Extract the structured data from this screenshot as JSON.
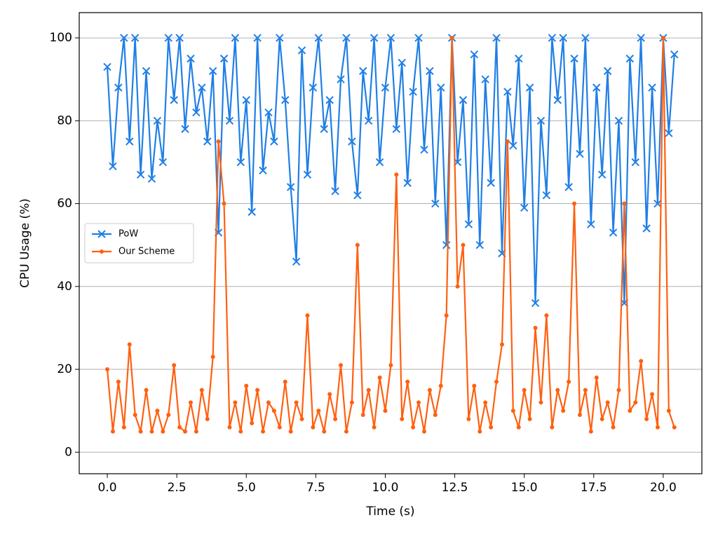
{
  "chart_data": {
    "type": "line",
    "x_label": "Time (s)",
    "y_label": "CPU Usage (%)",
    "x": [
      0,
      0.2,
      0.4,
      0.6,
      0.8,
      1,
      1.2,
      1.4,
      1.6,
      1.8,
      2,
      2.2,
      2.4,
      2.6,
      2.8,
      3,
      3.2,
      3.4,
      3.6,
      3.8,
      4,
      4.2,
      4.4,
      4.6,
      4.8,
      5,
      5.2,
      5.4,
      5.6,
      5.8,
      6,
      6.2,
      6.4,
      6.6,
      6.8,
      7,
      7.2,
      7.4,
      7.6,
      7.8,
      8,
      8.2,
      8.4,
      8.6,
      8.8,
      9,
      9.2,
      9.4,
      9.6,
      9.8,
      10,
      10.2,
      10.4,
      10.6,
      10.8,
      11,
      11.2,
      11.4,
      11.6,
      11.8,
      12,
      12.2,
      12.4,
      12.6,
      12.8,
      13,
      13.2,
      13.4,
      13.6,
      13.8,
      14,
      14.2,
      14.4,
      14.6,
      14.8,
      15,
      15.2,
      15.4,
      15.6,
      15.8,
      16,
      16.2,
      16.4,
      16.6,
      16.8,
      17,
      17.2,
      17.4,
      17.6,
      17.8,
      18,
      18.2,
      18.4,
      18.6,
      18.8,
      19,
      19.2,
      19.4,
      19.6,
      19.8,
      20,
      20.2,
      20.4
    ],
    "series": [
      {
        "name": "PoW",
        "color": "#1f7fe6",
        "marker": "x",
        "values": [
          93,
          69,
          88,
          100,
          75,
          100,
          67,
          92,
          66,
          80,
          70,
          100,
          85,
          100,
          78,
          95,
          82,
          88,
          75,
          92,
          53,
          95,
          80,
          100,
          70,
          85,
          58,
          100,
          68,
          82,
          75,
          100,
          85,
          64,
          46,
          97,
          67,
          88,
          100,
          78,
          85,
          63,
          90,
          100,
          75,
          62,
          92,
          80,
          100,
          70,
          88,
          100,
          78,
          94,
          65,
          87,
          100,
          73,
          92,
          60,
          88,
          50,
          100,
          70,
          85,
          55,
          96,
          50,
          90,
          65,
          100,
          48,
          87,
          74,
          95,
          59,
          88,
          36,
          80,
          62,
          100,
          85,
          100,
          64,
          95,
          72,
          100,
          55,
          88,
          67,
          92,
          53,
          80,
          36,
          95,
          70,
          100,
          54,
          88,
          60,
          100,
          77,
          96
        ]
      },
      {
        "name": "Our Scheme",
        "color": "#ff6010",
        "marker": "o",
        "values": [
          20,
          5,
          17,
          6,
          26,
          9,
          5,
          15,
          5,
          10,
          5,
          9,
          21,
          6,
          5,
          12,
          5,
          15,
          8,
          23,
          75,
          60,
          6,
          12,
          5,
          16,
          7,
          15,
          5,
          12,
          10,
          6,
          17,
          5,
          12,
          8,
          33,
          6,
          10,
          5,
          14,
          8,
          21,
          5,
          12,
          50,
          9,
          15,
          6,
          18,
          10,
          21,
          67,
          8,
          17,
          6,
          12,
          5,
          15,
          9,
          16,
          33,
          100,
          40,
          50,
          8,
          16,
          5,
          12,
          6,
          17,
          26,
          75,
          10,
          6,
          15,
          8,
          30,
          12,
          33,
          6,
          15,
          10,
          17,
          60,
          9,
          15,
          5,
          18,
          8,
          12,
          6,
          15,
          60,
          10,
          12,
          22,
          8,
          14,
          6,
          100,
          10,
          6
        ]
      }
    ],
    "xlim": [
      -1.01,
      21.39
    ],
    "ylim": [
      -5.2,
      106.1
    ],
    "xticks": [
      {
        "value": 0,
        "label": "0.0"
      },
      {
        "value": 2.5,
        "label": "2.5"
      },
      {
        "value": 5,
        "label": "5.0"
      },
      {
        "value": 7.5,
        "label": "7.5"
      },
      {
        "value": 10,
        "label": "10.0"
      },
      {
        "value": 12.5,
        "label": "12.5"
      },
      {
        "value": 15,
        "label": "15.0"
      },
      {
        "value": 17.5,
        "label": "17.5"
      },
      {
        "value": 20,
        "label": "20.0"
      }
    ],
    "yticks": [
      0,
      20,
      40,
      60,
      80,
      100
    ],
    "grid": true,
    "legend": "center left"
  }
}
